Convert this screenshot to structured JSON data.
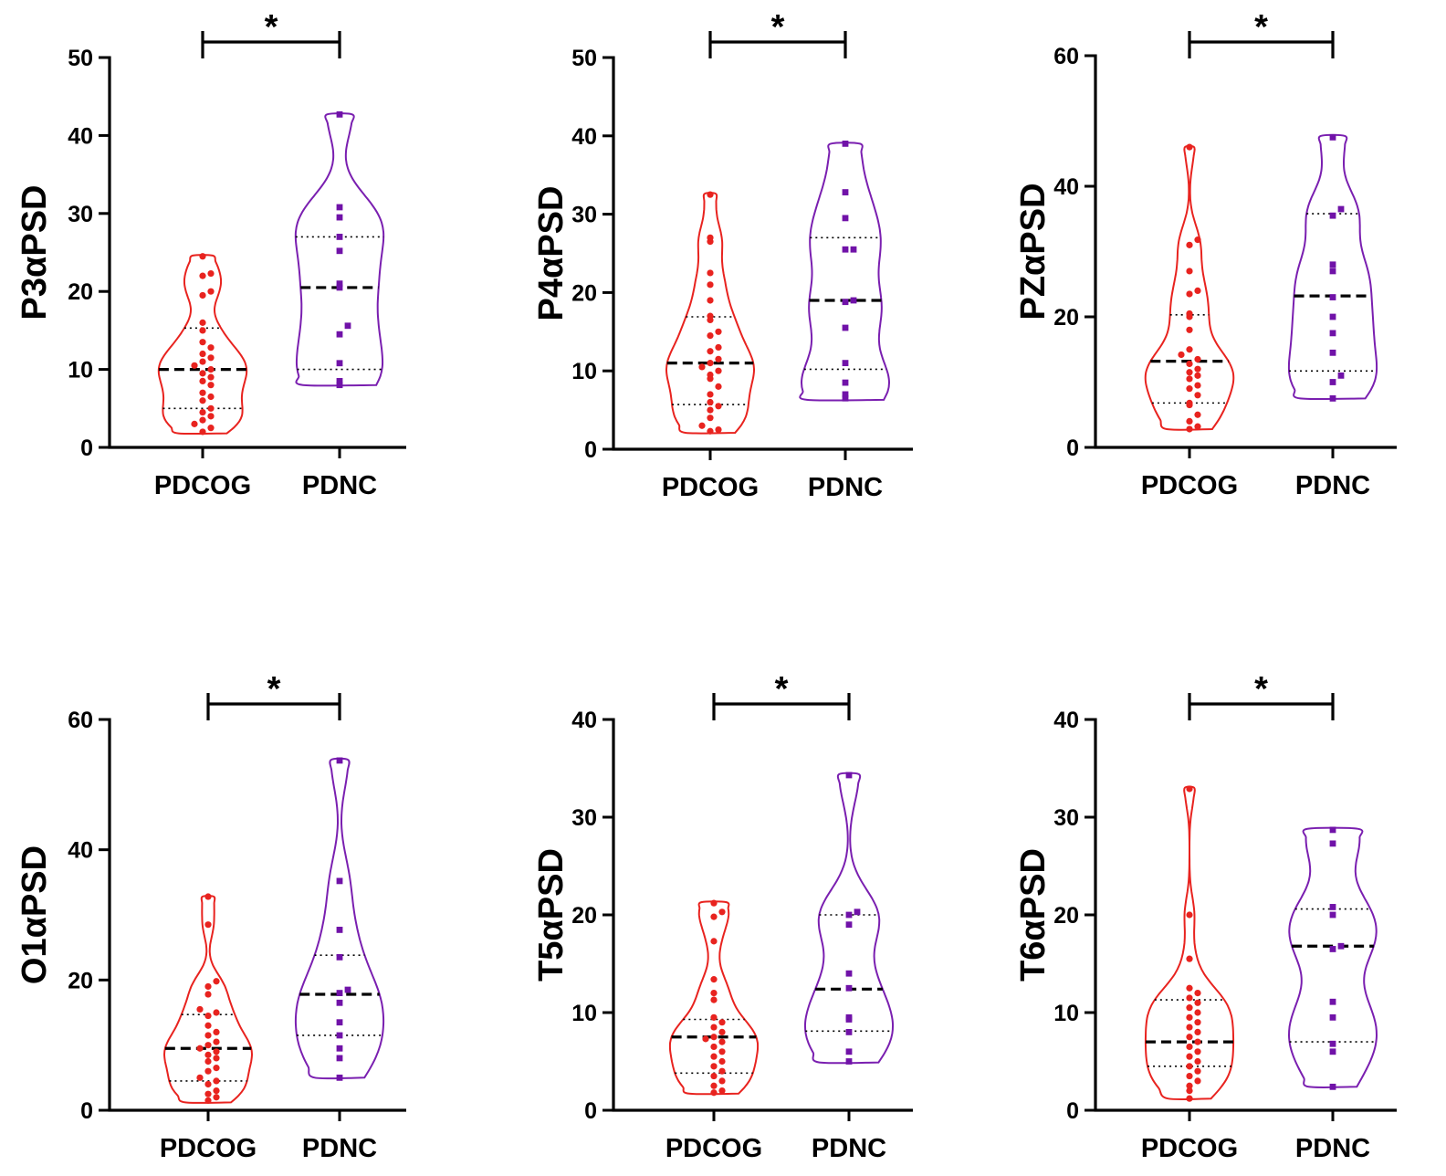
{
  "colors": {
    "PDCOG": "#e8231f",
    "PDNC": "#7012a8",
    "violin_PDCOG": "#e8231f",
    "violin_PDNC": "#7a1fb0"
  },
  "chart_data": [
    {
      "type": "violin",
      "ylabel": "P3αPSD",
      "categories": [
        "PDCOG",
        "PDNC"
      ],
      "ylim": [
        0,
        50
      ],
      "yticks": [
        0,
        10,
        20,
        30,
        40,
        50
      ],
      "significance": "*",
      "groups": [
        {
          "name": "PDCOG",
          "median": 10,
          "q1": 5,
          "q3": 15.3,
          "min": 1.8,
          "max": 24.6,
          "points": [
            24.5,
            22.3,
            22,
            20,
            19.5,
            16,
            15,
            13.5,
            12.8,
            12,
            11.5,
            11,
            10.5,
            10,
            9.5,
            9,
            8.5,
            8,
            7,
            6.5,
            6,
            5,
            4.5,
            4,
            3.5,
            3,
            2.5,
            2
          ]
        },
        {
          "name": "PDNC",
          "median": 20.5,
          "q1": 10,
          "q3": 27,
          "min": 8,
          "max": 42.7,
          "points": [
            42.7,
            30.8,
            29.5,
            27,
            25.2,
            21,
            20.5,
            15.6,
            14.5,
            10.8,
            8.5,
            8
          ]
        }
      ]
    },
    {
      "type": "violin",
      "ylabel": "P4αPSD",
      "categories": [
        "PDCOG",
        "PDNC"
      ],
      "ylim": [
        0,
        50
      ],
      "yticks": [
        0,
        10,
        20,
        30,
        40,
        50
      ],
      "significance": "*",
      "groups": [
        {
          "name": "PDCOG",
          "median": 11,
          "q1": 5.7,
          "q3": 16.9,
          "min": 2.1,
          "max": 32.6,
          "points": [
            32.5,
            27,
            26.5,
            22.5,
            21,
            19,
            17,
            16.5,
            15,
            14.5,
            13,
            12.5,
            11.5,
            11,
            10.5,
            10,
            9.5,
            9,
            8,
            7,
            6,
            5.5,
            5,
            4,
            3,
            2.5,
            2.3
          ]
        },
        {
          "name": "PDNC",
          "median": 19,
          "q1": 10.2,
          "q3": 27,
          "min": 6.3,
          "max": 39,
          "points": [
            39,
            32.8,
            29.5,
            25.5,
            25.5,
            19,
            18.8,
            15.5,
            11,
            8.5,
            7,
            6.5
          ]
        }
      ]
    },
    {
      "type": "violin",
      "ylabel": "PZαPSD",
      "categories": [
        "PDCOG",
        "PDNC"
      ],
      "ylim": [
        0,
        60
      ],
      "yticks": [
        0,
        20,
        40,
        60
      ],
      "significance": "*",
      "groups": [
        {
          "name": "PDCOG",
          "median": 13.2,
          "q1": 6.8,
          "q3": 20.3,
          "min": 2.8,
          "max": 46,
          "points": [
            46,
            31.8,
            31,
            27,
            24,
            23.5,
            20.5,
            20,
            18,
            15,
            14.2,
            13.5,
            12.8,
            12,
            11.5,
            11,
            10.5,
            9.5,
            9,
            8,
            6.8,
            6.5,
            5,
            4,
            3.2,
            2.8
          ]
        },
        {
          "name": "PDNC",
          "median": 23.2,
          "q1": 11.7,
          "q3": 35.8,
          "min": 7.5,
          "max": 47.7,
          "points": [
            47.5,
            36.5,
            35.5,
            28,
            27,
            23,
            20,
            17.5,
            14.5,
            11,
            10,
            7.5
          ]
        }
      ]
    },
    {
      "type": "violin",
      "ylabel": "O1αPSD",
      "categories": [
        "PDCOG",
        "PDNC"
      ],
      "ylim": [
        0,
        60
      ],
      "yticks": [
        0,
        20,
        40,
        60
      ],
      "significance": "*",
      "groups": [
        {
          "name": "PDCOG",
          "median": 9.5,
          "q1": 4.5,
          "q3": 14.7,
          "min": 1.2,
          "max": 32.8,
          "points": [
            32.8,
            28.5,
            19.8,
            19,
            17.8,
            15.5,
            15,
            14.5,
            13,
            12,
            11.5,
            10.5,
            10,
            9.5,
            9,
            8.5,
            8,
            7.5,
            6.5,
            6,
            5,
            4.5,
            4,
            3,
            2.5,
            2,
            1.5
          ]
        },
        {
          "name": "PDNC",
          "median": 17.8,
          "q1": 11.5,
          "q3": 23.8,
          "min": 5,
          "max": 53.8,
          "points": [
            53.7,
            35.2,
            27.7,
            23.5,
            18.5,
            18,
            16.5,
            13.5,
            11.5,
            9.5,
            8,
            5
          ]
        }
      ]
    },
    {
      "type": "violin",
      "ylabel": "T5αPSD",
      "categories": [
        "PDCOG",
        "PDNC"
      ],
      "ylim": [
        0,
        40
      ],
      "yticks": [
        0,
        10,
        20,
        30,
        40
      ],
      "significance": "*",
      "groups": [
        {
          "name": "PDCOG",
          "median": 7.5,
          "q1": 3.8,
          "q3": 9.3,
          "min": 1.7,
          "max": 21.3,
          "points": [
            21.2,
            20.3,
            19.8,
            17.3,
            13.4,
            12,
            11.3,
            9.5,
            9,
            8.5,
            8,
            7.5,
            7.3,
            7,
            6.5,
            6,
            5.5,
            5,
            4.5,
            4,
            3.5,
            3,
            2.5,
            2,
            1.8
          ]
        },
        {
          "name": "PDNC",
          "median": 12.4,
          "q1": 8.1,
          "q3": 20,
          "min": 4.9,
          "max": 34.4,
          "points": [
            34.3,
            20.3,
            20,
            19,
            14,
            12.5,
            9.5,
            9.3,
            8,
            6,
            5
          ]
        }
      ]
    },
    {
      "type": "violin",
      "ylabel": "T6αPSD",
      "categories": [
        "PDCOG",
        "PDNC"
      ],
      "ylim": [
        0,
        40
      ],
      "yticks": [
        0,
        10,
        20,
        30,
        40
      ],
      "significance": "*",
      "groups": [
        {
          "name": "PDCOG",
          "median": 7,
          "q1": 4.5,
          "q3": 11.3,
          "min": 1.2,
          "max": 33,
          "points": [
            32.9,
            20,
            15.5,
            12.5,
            12,
            11.5,
            11,
            10.5,
            10,
            9.5,
            9,
            8.5,
            8,
            7.5,
            7,
            6.5,
            6,
            5.5,
            5,
            4.5,
            4,
            3.5,
            3,
            2.5,
            2,
            1.2
          ]
        },
        {
          "name": "PDNC",
          "median": 16.8,
          "q1": 7,
          "q3": 20.6,
          "min": 2.4,
          "max": 28.8,
          "points": [
            28.7,
            27.3,
            20.8,
            20,
            16.8,
            16.5,
            11.1,
            9.5,
            6.8,
            6,
            2.4
          ]
        }
      ]
    }
  ]
}
